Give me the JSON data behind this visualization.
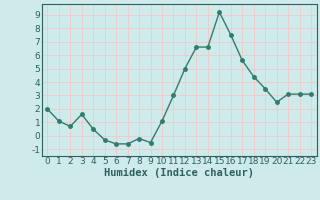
{
  "x": [
    0,
    1,
    2,
    3,
    4,
    5,
    6,
    7,
    8,
    9,
    10,
    11,
    12,
    13,
    14,
    15,
    16,
    17,
    18,
    19,
    20,
    21,
    22,
    23
  ],
  "y": [
    2.0,
    1.1,
    0.7,
    1.6,
    0.5,
    -0.3,
    -0.6,
    -0.6,
    -0.2,
    -0.5,
    1.1,
    3.0,
    5.0,
    6.6,
    6.6,
    9.2,
    7.5,
    5.6,
    4.4,
    3.5,
    2.5,
    3.1,
    3.1,
    3.1
  ],
  "line_color": "#2e7d6e",
  "marker": "o",
  "markersize": 2.5,
  "linewidth": 1.0,
  "xlabel": "Humidex (Indice chaleur)",
  "xlim": [
    -0.5,
    23.5
  ],
  "ylim": [
    -1.5,
    9.8
  ],
  "yticks": [
    -1,
    0,
    1,
    2,
    3,
    4,
    5,
    6,
    7,
    8,
    9
  ],
  "xticks": [
    0,
    1,
    2,
    3,
    4,
    5,
    6,
    7,
    8,
    9,
    10,
    11,
    12,
    13,
    14,
    15,
    16,
    17,
    18,
    19,
    20,
    21,
    22,
    23
  ],
  "bg_color": "#ceeaea",
  "grid_color": "#f0c8c8",
  "tick_fontsize": 6.5,
  "xlabel_fontsize": 7.5,
  "xlabel_fontweight": "bold"
}
